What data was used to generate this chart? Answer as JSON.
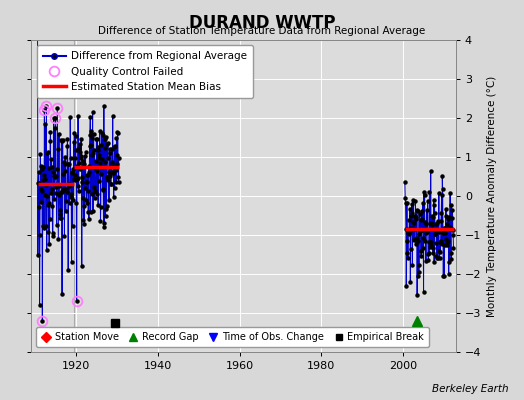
{
  "title": "DURAND WWTP",
  "subtitle": "Difference of Station Temperature Data from Regional Average",
  "ylabel": "Monthly Temperature Anomaly Difference (°C)",
  "xlim": [
    1909,
    2013
  ],
  "ylim": [
    -4,
    4
  ],
  "xticks": [
    1920,
    1940,
    1960,
    1980,
    2000
  ],
  "yticks": [
    -4,
    -3,
    -2,
    -1,
    0,
    1,
    2,
    3,
    4
  ],
  "fig_bg_color": "#d8d8d8",
  "plot_bg_color": "#dcdcdc",
  "grid_color": "#ffffff",
  "line_color": "#0000cc",
  "bias_color": "#ff0000",
  "qc_color": "#ff80ff",
  "marker_color": "#000000",
  "watermark": "Berkeley Earth",
  "seg1_start": 1910.5,
  "seg1_end": 1930.5,
  "seg1_break": 1919.5,
  "seg1_bias1": 0.32,
  "seg1_bias2": 0.75,
  "seg2_start": 2000.5,
  "seg2_end": 2012.5,
  "seg2_bias": -0.85,
  "empirical_break_x": 1929.5,
  "empirical_break_y": -3.25,
  "record_gap_x": 2003.5,
  "record_gap_y": -3.2,
  "vertical_line_x": 1919.5
}
